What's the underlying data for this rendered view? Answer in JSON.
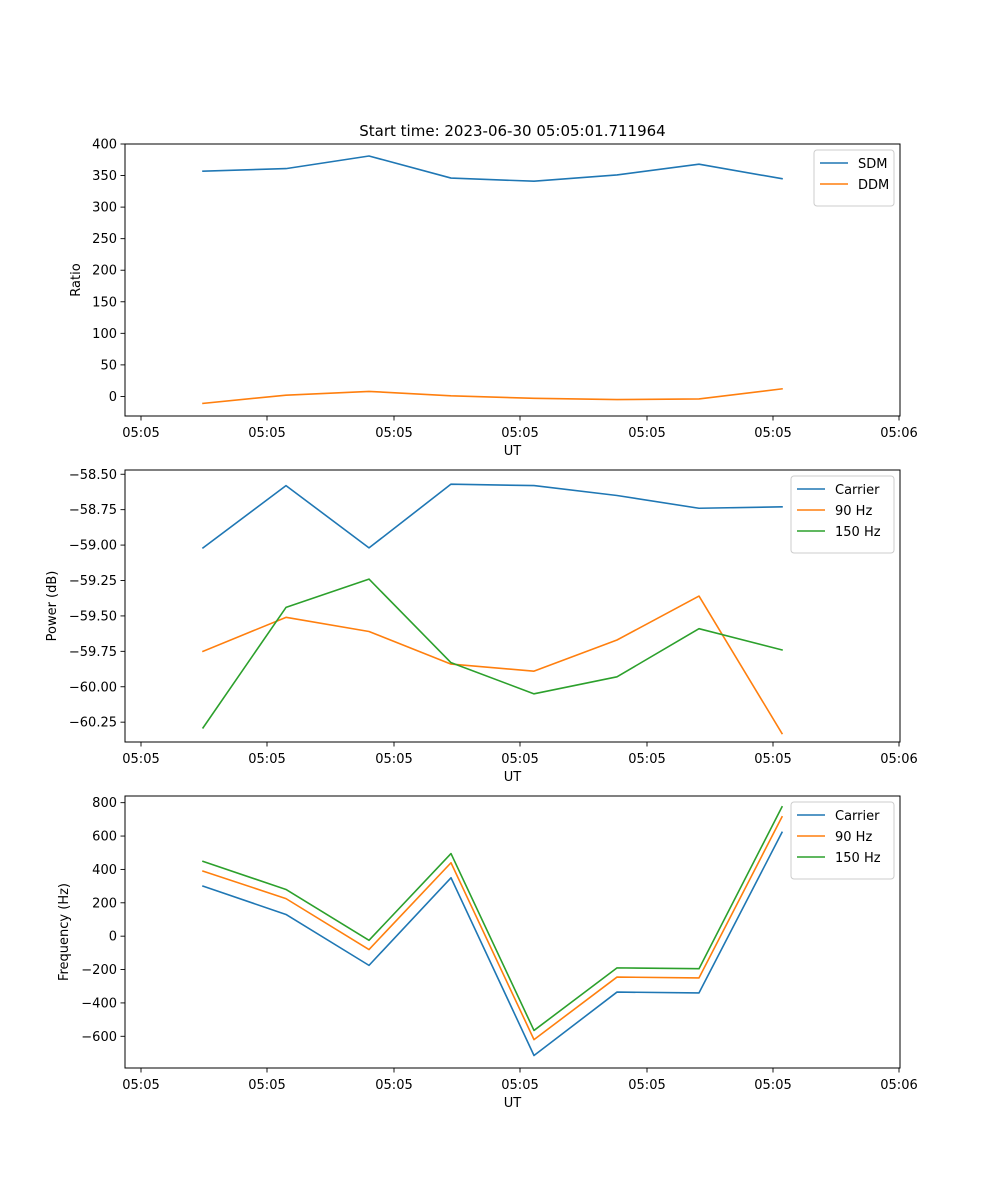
{
  "figure": {
    "title": "Start time: 2023-06-30 05:05:01.711964"
  },
  "chart_data": [
    {
      "type": "line",
      "xlabel": "UT",
      "ylabel": "Ratio",
      "x_tick_labels": [
        "05:05",
        "05:05",
        "05:05",
        "05:05",
        "05:05",
        "05:05",
        "05:06"
      ],
      "ylim": [
        -31,
        400
      ],
      "y_ticks": [
        0,
        50,
        100,
        150,
        200,
        250,
        300,
        350,
        400
      ],
      "y_tick_labels": [
        "0",
        "50",
        "100",
        "150",
        "200",
        "250",
        "300",
        "350",
        "400"
      ],
      "legend": "top-right",
      "series": [
        {
          "name": "SDM",
          "color": "#1f77b4",
          "values": [
            357,
            361,
            381,
            346,
            341,
            351,
            368,
            345
          ]
        },
        {
          "name": "DDM",
          "color": "#ff7f0e",
          "values": [
            -11,
            2,
            8,
            1,
            -3,
            -5,
            -4,
            12
          ]
        }
      ]
    },
    {
      "type": "line",
      "xlabel": "UT",
      "ylabel": "Power (dB)",
      "x_tick_labels": [
        "05:05",
        "05:05",
        "05:05",
        "05:05",
        "05:05",
        "05:05",
        "05:06"
      ],
      "ylim": [
        -60.39,
        -58.47
      ],
      "y_ticks": [
        -58.5,
        -58.75,
        -59.0,
        -59.25,
        -59.5,
        -59.75,
        -60.0,
        -60.25
      ],
      "y_tick_labels": [
        "−58.50",
        "−58.75",
        "−59.00",
        "−59.25",
        "−59.50",
        "−59.75",
        "−60.00",
        "−60.25"
      ],
      "legend": "top-right",
      "series": [
        {
          "name": "Carrier",
          "color": "#1f77b4",
          "values": [
            -59.02,
            -58.58,
            -59.02,
            -58.57,
            -58.58,
            -58.65,
            -58.74,
            -58.73
          ]
        },
        {
          "name": "90 Hz",
          "color": "#ff7f0e",
          "values": [
            -59.75,
            -59.51,
            -59.61,
            -59.84,
            -59.89,
            -59.67,
            -59.36,
            -60.33
          ]
        },
        {
          "name": "150 Hz",
          "color": "#2ca02c",
          "values": [
            -60.29,
            -59.44,
            -59.24,
            -59.83,
            -60.05,
            -59.93,
            -59.59,
            -59.74
          ]
        }
      ]
    },
    {
      "type": "line",
      "xlabel": "UT",
      "ylabel": "Frequency (Hz)",
      "x_tick_labels": [
        "05:05",
        "05:05",
        "05:05",
        "05:05",
        "05:05",
        "05:05",
        "05:06"
      ],
      "ylim": [
        -790,
        840
      ],
      "y_ticks": [
        -600,
        -400,
        -200,
        0,
        200,
        400,
        600,
        800
      ],
      "y_tick_labels": [
        "−600",
        "−400",
        "−200",
        "0",
        "200",
        "400",
        "600",
        "800"
      ],
      "legend": "top-right",
      "series": [
        {
          "name": "Carrier",
          "color": "#1f77b4",
          "values": [
            300,
            130,
            -175,
            350,
            -715,
            -335,
            -340,
            622
          ]
        },
        {
          "name": "90 Hz",
          "color": "#ff7f0e",
          "values": [
            390,
            225,
            -80,
            440,
            -620,
            -245,
            -250,
            715
          ]
        },
        {
          "name": "150 Hz",
          "color": "#2ca02c",
          "values": [
            448,
            280,
            -25,
            495,
            -565,
            -190,
            -195,
            775
          ]
        }
      ]
    }
  ]
}
